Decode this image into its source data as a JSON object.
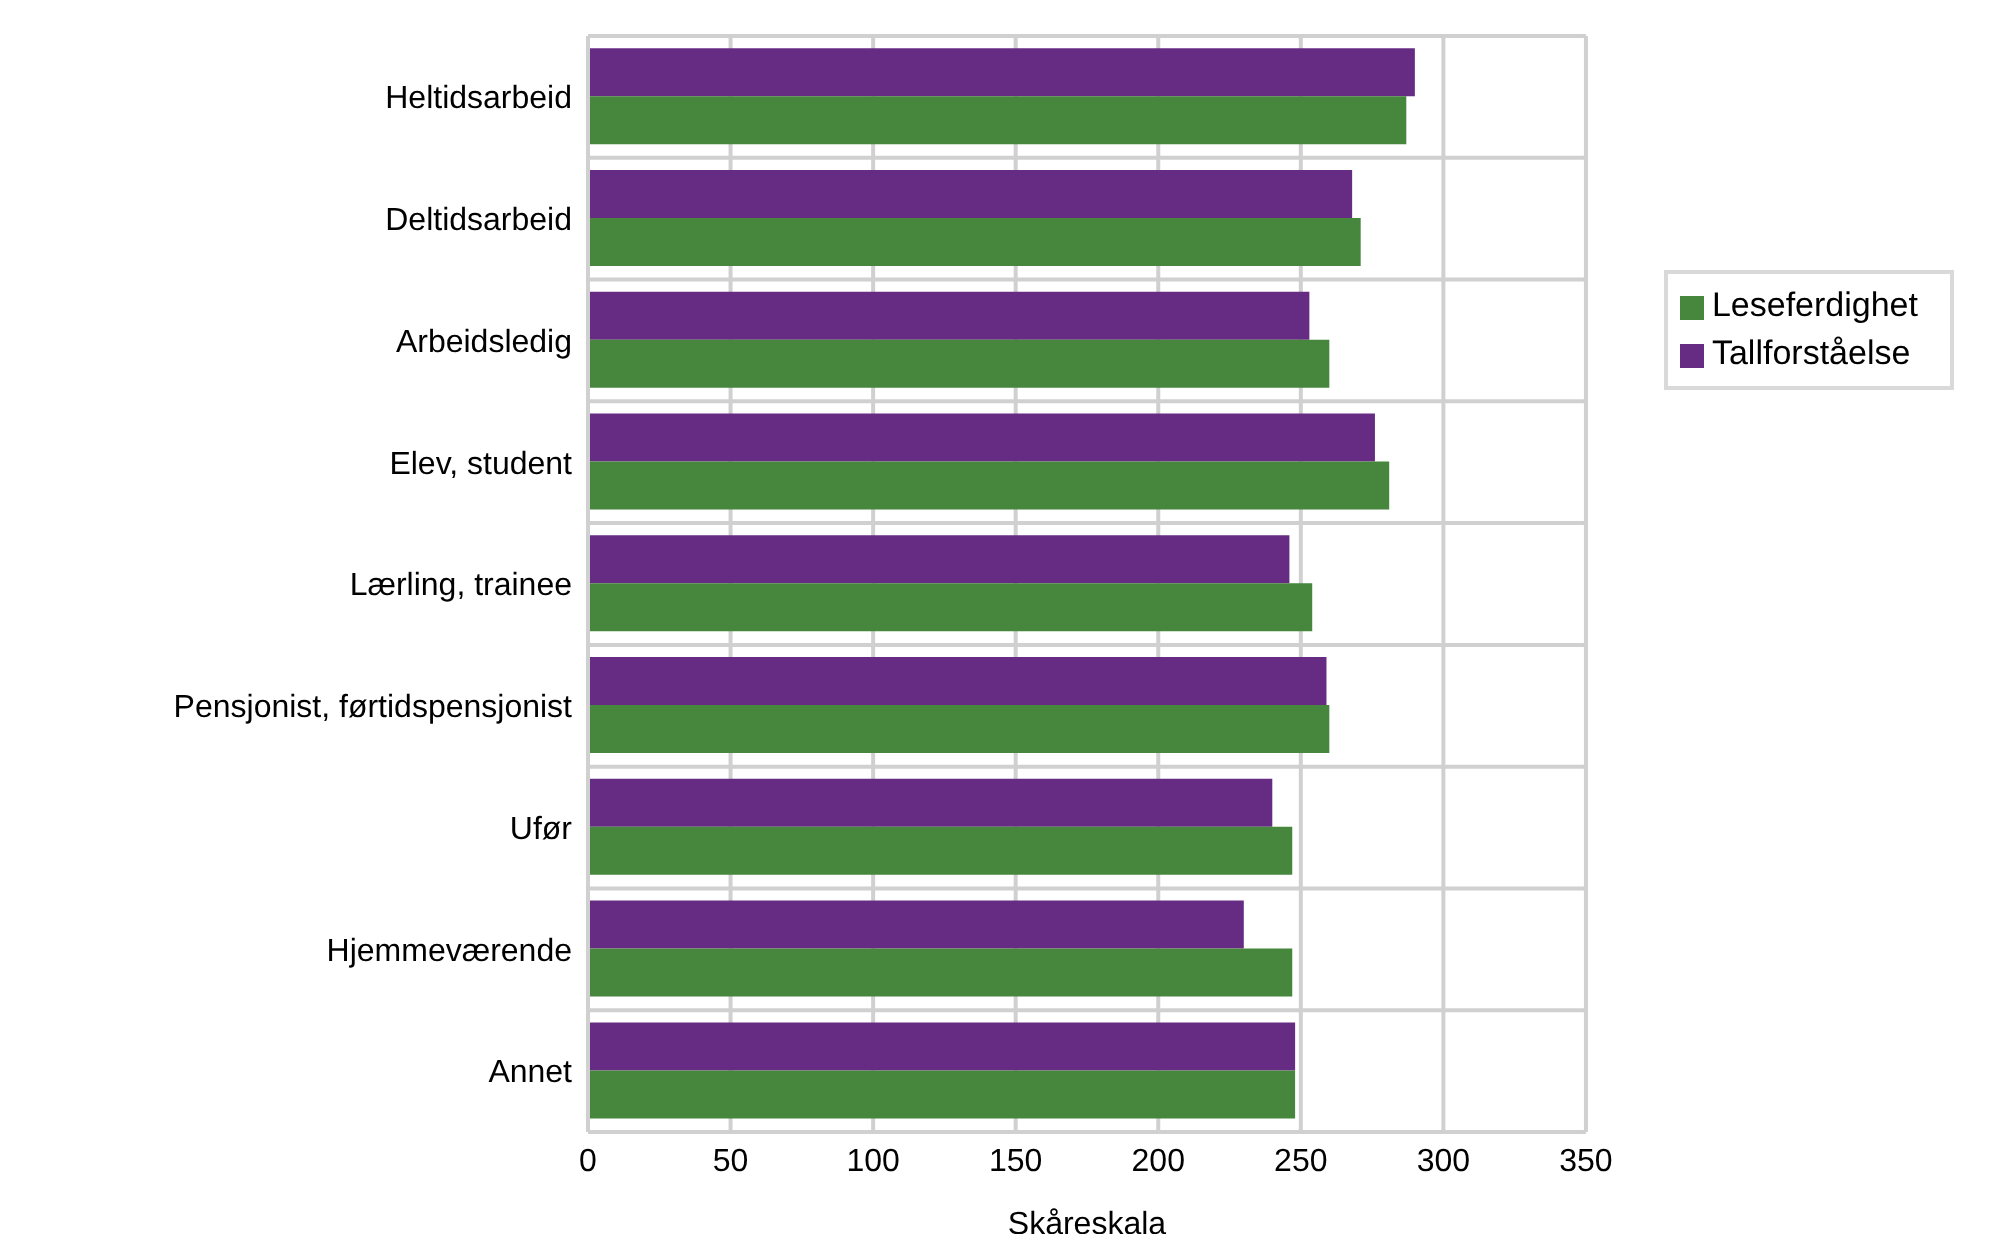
{
  "chart_data": {
    "type": "bar",
    "orientation": "horizontal",
    "xlabel": "Skåreskala",
    "categories": [
      "Heltidsarbeid",
      "Deltidsarbeid",
      "Arbeidsledig",
      "Elev, student",
      "Lærling, trainee",
      "Pensjonist, førtidspensjonist",
      "Ufør",
      "Hjemmeværende",
      "Annet"
    ],
    "series": [
      {
        "name": "Tallforståelse",
        "color": "#662c83",
        "values": [
          290,
          268,
          253,
          276,
          246,
          259,
          240,
          230,
          248
        ]
      },
      {
        "name": "Leseferdighet",
        "color": "#46863d",
        "values": [
          287,
          271,
          260,
          281,
          254,
          260,
          247,
          247,
          248
        ]
      }
    ],
    "xlim": [
      0,
      350
    ],
    "xticks": [
      0,
      50,
      100,
      150,
      200,
      250,
      300,
      350
    ],
    "grid": true,
    "legend": "right"
  }
}
